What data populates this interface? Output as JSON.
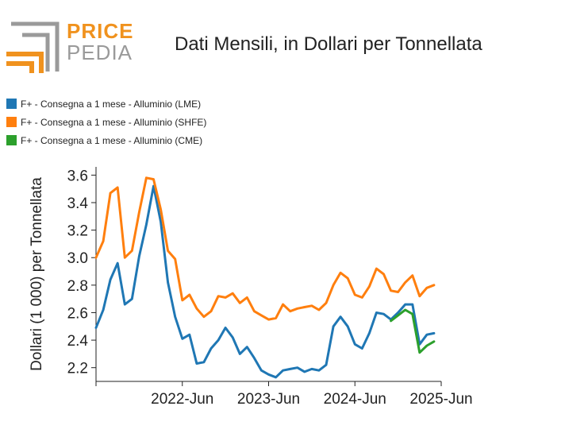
{
  "logo": {
    "word1": "PRICE",
    "word2": "PEDIA",
    "colors": {
      "orange": "#f0921e",
      "gray": "#9a9a9a"
    }
  },
  "chart_data": {
    "type": "line",
    "title": "Dati Mensili, in Dollari per Tonnellata",
    "xlabel": "",
    "ylabel": "Dollari (1 000) per Tonnellata",
    "x_ticks": [
      "2022-Jun",
      "2023-Jun",
      "2024-Jun",
      "2025-Jun"
    ],
    "y_ticks": [
      "2.2",
      "2.4",
      "2.6",
      "2.8",
      "3.0",
      "3.2",
      "3.4",
      "3.6"
    ],
    "xlim": [
      "2021-06",
      "2025-06"
    ],
    "ylim": [
      2.1,
      3.66
    ],
    "grid": false,
    "legend_position": "top-left",
    "series": [
      {
        "name": "F+ - Consegna a 1 mese - Alluminio (LME)",
        "color": "#1f77b4",
        "points": [
          [
            "2021-06",
            2.49
          ],
          [
            "2021-07",
            2.62
          ],
          [
            "2021-08",
            2.84
          ],
          [
            "2021-09",
            2.96
          ],
          [
            "2021-10",
            2.66
          ],
          [
            "2021-11",
            2.7
          ],
          [
            "2021-12",
            3.01
          ],
          [
            "2022-01",
            3.24
          ],
          [
            "2022-02",
            3.52
          ],
          [
            "2022-03",
            3.26
          ],
          [
            "2022-04",
            2.82
          ],
          [
            "2022-05",
            2.57
          ],
          [
            "2022-06",
            2.41
          ],
          [
            "2022-07",
            2.44
          ],
          [
            "2022-08",
            2.23
          ],
          [
            "2022-09",
            2.24
          ],
          [
            "2022-10",
            2.34
          ],
          [
            "2022-11",
            2.4
          ],
          [
            "2022-12",
            2.49
          ],
          [
            "2023-01",
            2.42
          ],
          [
            "2023-02",
            2.3
          ],
          [
            "2023-03",
            2.35
          ],
          [
            "2023-04",
            2.27
          ],
          [
            "2023-05",
            2.18
          ],
          [
            "2023-06",
            2.15
          ],
          [
            "2023-07",
            2.13
          ],
          [
            "2023-08",
            2.18
          ],
          [
            "2023-09",
            2.19
          ],
          [
            "2023-10",
            2.2
          ],
          [
            "2023-11",
            2.17
          ],
          [
            "2023-12",
            2.19
          ],
          [
            "2024-01",
            2.18
          ],
          [
            "2024-02",
            2.22
          ],
          [
            "2024-03",
            2.5
          ],
          [
            "2024-04",
            2.57
          ],
          [
            "2024-05",
            2.5
          ],
          [
            "2024-06",
            2.37
          ],
          [
            "2024-07",
            2.34
          ],
          [
            "2024-08",
            2.45
          ],
          [
            "2024-09",
            2.6
          ],
          [
            "2024-10",
            2.59
          ],
          [
            "2024-11",
            2.55
          ],
          [
            "2024-12",
            2.6
          ],
          [
            "2025-01",
            2.66
          ],
          [
            "2025-02",
            2.66
          ],
          [
            "2025-03",
            2.37
          ],
          [
            "2025-04",
            2.44
          ],
          [
            "2025-05",
            2.45
          ]
        ]
      },
      {
        "name": "F+ - Consegna a 1 mese - Alluminio (SHFE)",
        "color": "#ff7f0e",
        "points": [
          [
            "2021-06",
            3.0
          ],
          [
            "2021-07",
            3.12
          ],
          [
            "2021-08",
            3.47
          ],
          [
            "2021-09",
            3.51
          ],
          [
            "2021-10",
            3.0
          ],
          [
            "2021-11",
            3.05
          ],
          [
            "2021-12",
            3.33
          ],
          [
            "2022-01",
            3.58
          ],
          [
            "2022-02",
            3.57
          ],
          [
            "2022-03",
            3.35
          ],
          [
            "2022-04",
            3.05
          ],
          [
            "2022-05",
            2.99
          ],
          [
            "2022-06",
            2.69
          ],
          [
            "2022-07",
            2.73
          ],
          [
            "2022-08",
            2.63
          ],
          [
            "2022-09",
            2.57
          ],
          [
            "2022-10",
            2.61
          ],
          [
            "2022-11",
            2.72
          ],
          [
            "2022-12",
            2.71
          ],
          [
            "2023-01",
            2.74
          ],
          [
            "2023-02",
            2.67
          ],
          [
            "2023-03",
            2.71
          ],
          [
            "2023-04",
            2.61
          ],
          [
            "2023-05",
            2.58
          ],
          [
            "2023-06",
            2.55
          ],
          [
            "2023-07",
            2.56
          ],
          [
            "2023-08",
            2.66
          ],
          [
            "2023-09",
            2.61
          ],
          [
            "2023-10",
            2.63
          ],
          [
            "2023-11",
            2.64
          ],
          [
            "2023-12",
            2.65
          ],
          [
            "2024-01",
            2.62
          ],
          [
            "2024-02",
            2.67
          ],
          [
            "2024-03",
            2.8
          ],
          [
            "2024-04",
            2.89
          ],
          [
            "2024-05",
            2.85
          ],
          [
            "2024-06",
            2.73
          ],
          [
            "2024-07",
            2.71
          ],
          [
            "2024-08",
            2.79
          ],
          [
            "2024-09",
            2.92
          ],
          [
            "2024-10",
            2.88
          ],
          [
            "2024-11",
            2.76
          ],
          [
            "2024-12",
            2.75
          ],
          [
            "2025-01",
            2.82
          ],
          [
            "2025-02",
            2.87
          ],
          [
            "2025-03",
            2.72
          ],
          [
            "2025-04",
            2.78
          ],
          [
            "2025-05",
            2.8
          ]
        ]
      },
      {
        "name": "F+ - Consegna a 1 mese - Alluminio (CME)",
        "color": "#2ca02c",
        "points": [
          [
            "2024-11",
            2.54
          ],
          [
            "2024-12",
            2.58
          ],
          [
            "2025-01",
            2.62
          ],
          [
            "2025-02",
            2.59
          ],
          [
            "2025-03",
            2.31
          ],
          [
            "2025-04",
            2.36
          ],
          [
            "2025-05",
            2.39
          ]
        ]
      }
    ]
  }
}
